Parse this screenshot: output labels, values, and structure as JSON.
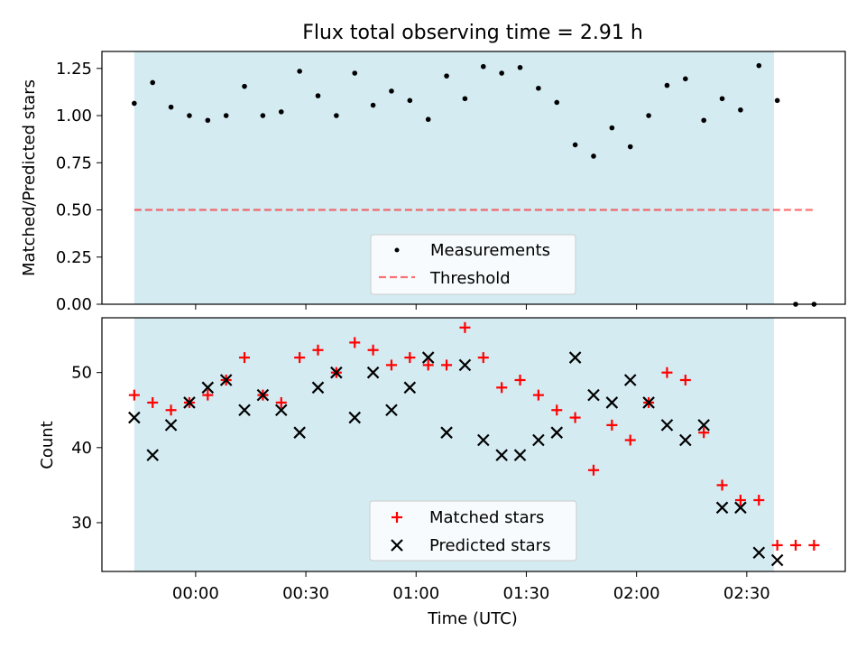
{
  "figure": {
    "title": "Flux total observing time = 2.91 h",
    "xlabel": "Time (UTC)"
  },
  "colors": {
    "span": "#add8e6",
    "threshold": "#ff0000",
    "measurement": "#000000",
    "matched": "#ff0000",
    "predicted": "#000000"
  },
  "chart_data": [
    {
      "type": "scatter",
      "title": "Flux total observing time = 2.91 h",
      "xlabel": "",
      "ylabel": "Matched/Predicted stars",
      "ylim": [
        0,
        1.34
      ],
      "xlim": [
        -25.5,
        176.8
      ],
      "yticks": [
        0.0,
        0.25,
        0.5,
        0.75,
        1.0,
        1.25
      ],
      "ytick_labels": [
        "0.00",
        "0.25",
        "0.50",
        "0.75",
        "1.00",
        "1.25"
      ],
      "observing_span_minutes": [
        -16.7,
        157.4
      ],
      "series": [
        {
          "name": "Measurements",
          "marker": "dot",
          "x": [
            -16.7,
            -11.7,
            -6.7,
            -1.7,
            3.3,
            8.3,
            13.3,
            18.3,
            23.3,
            28.3,
            33.3,
            38.3,
            43.3,
            48.3,
            53.3,
            58.3,
            63.3,
            68.3,
            73.3,
            78.3,
            83.3,
            88.3,
            93.3,
            98.3,
            103.3,
            108.3,
            113.3,
            118.3,
            123.3,
            128.3,
            133.3,
            138.3,
            143.3,
            148.3,
            153.3,
            158.3,
            163.3,
            168.3
          ],
          "y": [
            1.065,
            1.175,
            1.045,
            1.0,
            0.975,
            1.0,
            1.155,
            1.0,
            1.02,
            1.235,
            1.105,
            1.0,
            1.225,
            1.055,
            1.13,
            1.08,
            0.98,
            1.21,
            1.09,
            1.26,
            1.225,
            1.255,
            1.145,
            1.07,
            0.845,
            0.785,
            0.935,
            0.835,
            1.0,
            1.16,
            1.195,
            0.975,
            1.09,
            1.03,
            1.265,
            1.08,
            0.0,
            0.0
          ]
        },
        {
          "name": "Threshold",
          "style": "dashed",
          "x": [
            -16.7,
            168.3
          ],
          "y": [
            0.5,
            0.5
          ]
        }
      ],
      "legend": {
        "position": "bottom-center",
        "entries": [
          "Measurements",
          "Threshold"
        ]
      }
    },
    {
      "type": "scatter",
      "xlabel": "Time (UTC)",
      "ylabel": "Count",
      "ylim": [
        23.5,
        57.3
      ],
      "xlim": [
        -25.5,
        176.8
      ],
      "yticks": [
        30,
        40,
        50
      ],
      "ytick_labels": [
        "30",
        "40",
        "50"
      ],
      "xticks": [
        0,
        30,
        60,
        90,
        120,
        150
      ],
      "xtick_labels": [
        "00:00",
        "00:30",
        "01:00",
        "01:30",
        "02:00",
        "02:30"
      ],
      "observing_span_minutes": [
        -16.7,
        157.4
      ],
      "series": [
        {
          "name": "Matched stars",
          "marker": "plus",
          "x": [
            -16.7,
            -11.7,
            -6.7,
            -1.7,
            3.3,
            8.3,
            13.3,
            18.3,
            23.3,
            28.3,
            33.3,
            38.3,
            43.3,
            48.3,
            53.3,
            58.3,
            63.3,
            68.3,
            73.3,
            78.3,
            83.3,
            88.3,
            93.3,
            98.3,
            103.3,
            108.3,
            113.3,
            118.3,
            123.3,
            128.3,
            133.3,
            138.3,
            143.3,
            148.3,
            153.3,
            158.3,
            163.3,
            168.3
          ],
          "y": [
            47,
            46,
            45,
            46,
            47,
            49,
            52,
            47,
            46,
            52,
            53,
            50,
            54,
            53,
            51,
            52,
            51,
            51,
            56,
            52,
            48,
            49,
            47,
            45,
            44,
            37,
            43,
            41,
            46,
            50,
            49,
            42,
            35,
            33,
            33,
            27,
            27,
            27
          ]
        },
        {
          "name": "Predicted stars",
          "marker": "x",
          "x": [
            -16.7,
            -11.7,
            -6.7,
            -1.7,
            3.3,
            8.3,
            13.3,
            18.3,
            23.3,
            28.3,
            33.3,
            38.3,
            43.3,
            48.3,
            53.3,
            58.3,
            63.3,
            68.3,
            73.3,
            78.3,
            83.3,
            88.3,
            93.3,
            98.3,
            103.3,
            108.3,
            113.3,
            118.3,
            123.3,
            128.3,
            133.3,
            138.3,
            143.3,
            148.3,
            153.3,
            158.3
          ],
          "y": [
            44,
            39,
            43,
            46,
            48,
            49,
            45,
            47,
            45,
            42,
            48,
            50,
            44,
            50,
            45,
            48,
            52,
            42,
            51,
            41,
            39,
            39,
            41,
            42,
            52,
            47,
            46,
            49,
            46,
            43,
            41,
            43,
            32,
            32,
            26,
            25
          ]
        }
      ],
      "legend": {
        "position": "bottom-center",
        "entries": [
          "Matched stars",
          "Predicted stars"
        ]
      }
    }
  ]
}
